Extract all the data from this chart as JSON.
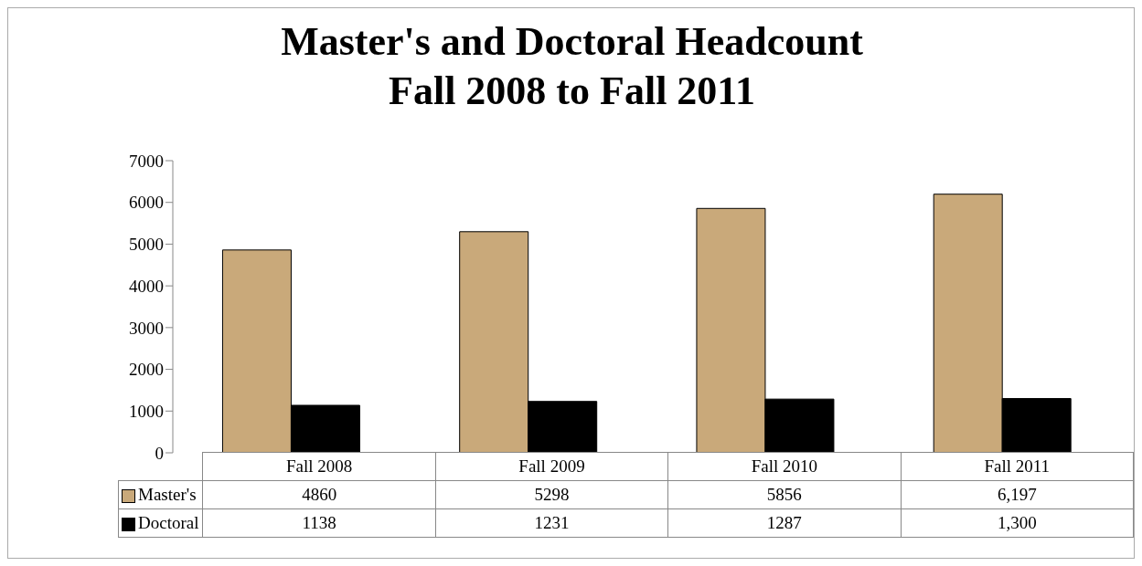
{
  "chart_data": {
    "type": "bar",
    "title": "Master's and Doctoral Headcount\nFall 2008 to Fall 2011",
    "categories": [
      "Fall 2008",
      "Fall 2009",
      "Fall 2010",
      "Fall 2011"
    ],
    "series": [
      {
        "name": "Master's",
        "color": "#c9a97a",
        "values": [
          4860,
          5298,
          5856,
          6197
        ],
        "value_labels": [
          "4860",
          "5298",
          "5856",
          "6,197"
        ]
      },
      {
        "name": "Doctoral",
        "color": "#000000",
        "values": [
          1138,
          1231,
          1287,
          1300
        ],
        "value_labels": [
          "1138",
          "1231",
          "1287",
          "1,300"
        ]
      }
    ],
    "ylim": [
      0,
      7000
    ],
    "yticks": [
      0,
      1000,
      2000,
      3000,
      4000,
      5000,
      6000,
      7000
    ],
    "grid": false,
    "legend": "bottom"
  }
}
